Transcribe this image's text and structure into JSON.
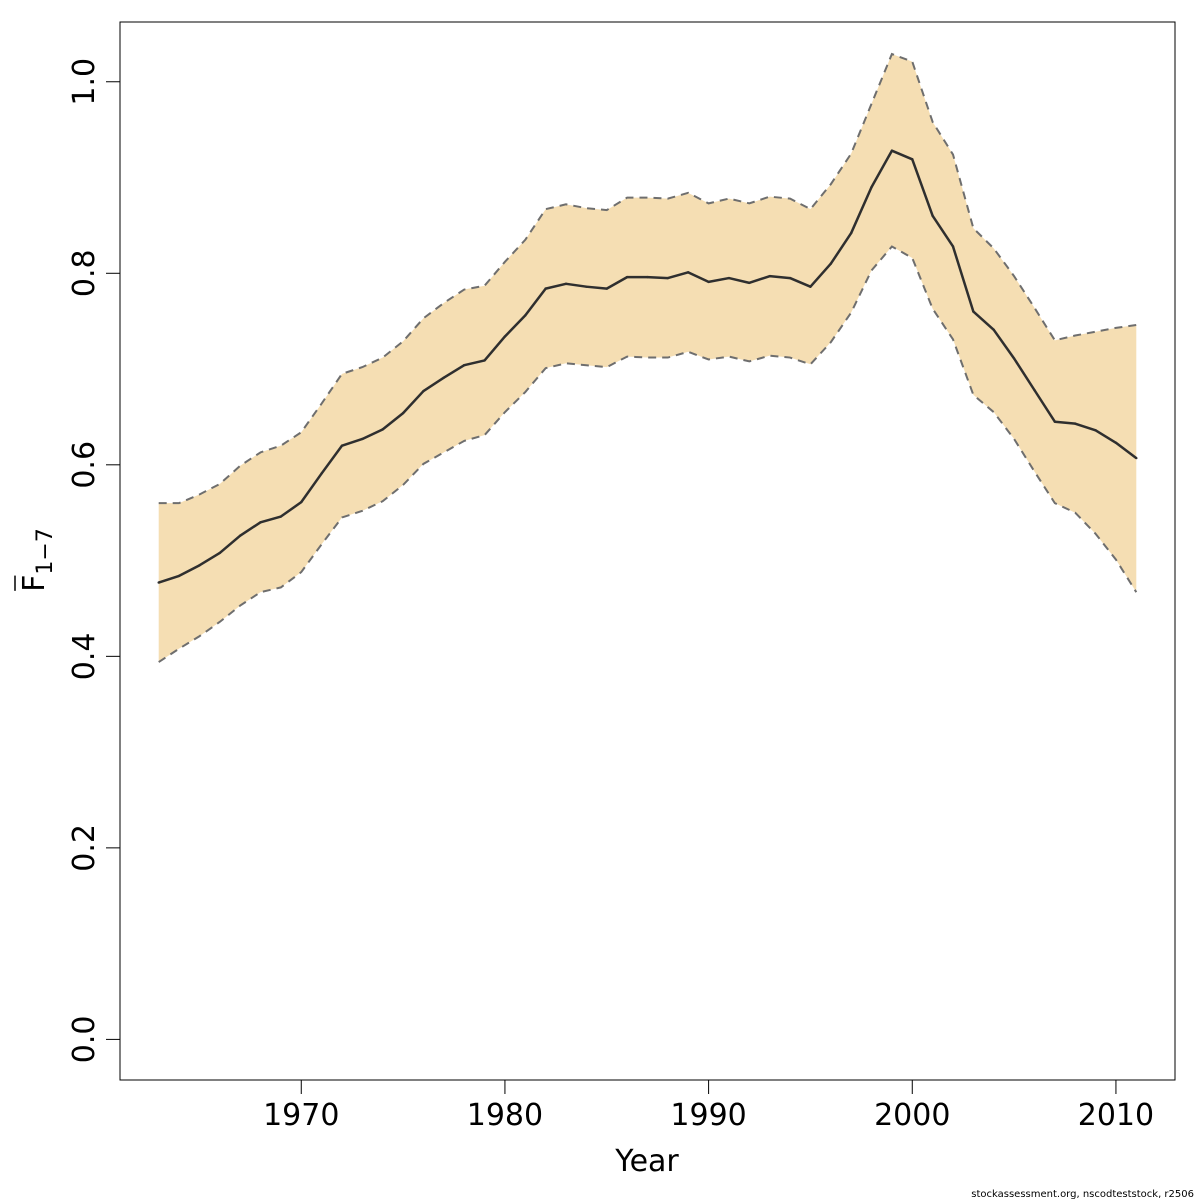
{
  "chart_data": {
    "type": "line",
    "title": "",
    "xlabel": "Year",
    "ylabel_main": "F",
    "ylabel_sub": "1−7",
    "xlim": [
      1961.1,
      2012.9
    ],
    "ylim": [
      -0.0424,
      1.0624
    ],
    "x_ticks": [
      1970,
      1980,
      1990,
      2000,
      2010
    ],
    "y_ticks": [
      0.0,
      0.2,
      0.4,
      0.6,
      0.8,
      1.0
    ],
    "y_tick_labels": [
      "0.0",
      "0.2",
      "0.4",
      "0.6",
      "0.8",
      "1.0"
    ],
    "grid": false,
    "colors": {
      "band_fill": "#f5deb3",
      "band_edge": "#6e6e6e",
      "estimate_line": "#2f2f2f"
    },
    "x": [
      1963,
      1964,
      1965,
      1966,
      1967,
      1968,
      1969,
      1970,
      1971,
      1972,
      1973,
      1974,
      1975,
      1976,
      1977,
      1978,
      1979,
      1980,
      1981,
      1982,
      1983,
      1984,
      1985,
      1986,
      1987,
      1988,
      1989,
      1990,
      1991,
      1992,
      1993,
      1994,
      1995,
      1996,
      1997,
      1998,
      1999,
      2000,
      2001,
      2002,
      2003,
      2004,
      2005,
      2006,
      2007,
      2008,
      2009,
      2010,
      2011
    ],
    "series": [
      {
        "role": "estimate",
        "values": [
          0.477,
          0.484,
          0.495,
          0.508,
          0.526,
          0.54,
          0.546,
          0.561,
          0.591,
          0.62,
          0.627,
          0.637,
          0.654,
          0.677,
          0.691,
          0.704,
          0.709,
          0.734,
          0.756,
          0.784,
          0.789,
          0.786,
          0.784,
          0.796,
          0.796,
          0.795,
          0.801,
          0.791,
          0.795,
          0.79,
          0.797,
          0.795,
          0.786,
          0.81,
          0.842,
          0.89,
          0.928,
          0.919,
          0.86,
          0.828,
          0.76,
          0.741,
          0.711,
          0.678,
          0.645,
          0.643,
          0.636,
          0.623,
          0.607
        ]
      },
      {
        "role": "upper",
        "values": [
          0.56,
          0.56,
          0.569,
          0.58,
          0.599,
          0.613,
          0.62,
          0.634,
          0.664,
          0.695,
          0.702,
          0.712,
          0.729,
          0.753,
          0.769,
          0.783,
          0.787,
          0.812,
          0.835,
          0.867,
          0.872,
          0.868,
          0.866,
          0.879,
          0.879,
          0.878,
          0.884,
          0.873,
          0.878,
          0.873,
          0.88,
          0.878,
          0.867,
          0.893,
          0.925,
          0.977,
          1.029,
          1.021,
          0.958,
          0.924,
          0.847,
          0.826,
          0.797,
          0.764,
          0.73,
          0.735,
          0.739,
          0.743,
          0.746
        ]
      },
      {
        "role": "lower",
        "values": [
          0.394,
          0.408,
          0.421,
          0.436,
          0.453,
          0.467,
          0.472,
          0.488,
          0.517,
          0.545,
          0.552,
          0.562,
          0.579,
          0.601,
          0.613,
          0.625,
          0.631,
          0.655,
          0.676,
          0.701,
          0.706,
          0.704,
          0.702,
          0.713,
          0.712,
          0.712,
          0.718,
          0.71,
          0.713,
          0.708,
          0.714,
          0.712,
          0.705,
          0.728,
          0.759,
          0.803,
          0.828,
          0.816,
          0.763,
          0.731,
          0.673,
          0.655,
          0.627,
          0.593,
          0.56,
          0.55,
          0.528,
          0.501,
          0.467
        ]
      }
    ]
  },
  "footer": {
    "text": "stockassessment.org, nscodteststock, r2506"
  }
}
